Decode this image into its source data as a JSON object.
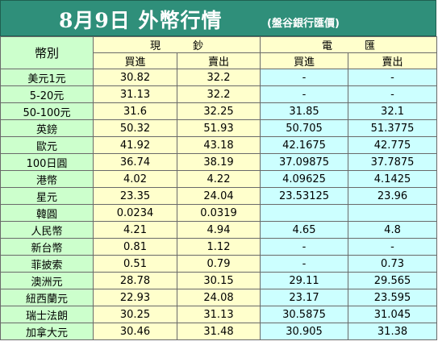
{
  "title": "8月9日 外幣行情",
  "subtitle": "(盤谷銀行匯價)",
  "header": {
    "currency_col": "幣別",
    "group_cash": "現鈔",
    "group_wire": "電匯",
    "buy": "買進",
    "sell": "賣出"
  },
  "rows": [
    {
      "name": "美元1元",
      "cash_buy": "30.82",
      "cash_sell": "32.2",
      "wire_buy": "-",
      "wire_sell": "-"
    },
    {
      "name": "5-20元",
      "cash_buy": "31.13",
      "cash_sell": "32.2",
      "wire_buy": "-",
      "wire_sell": "-"
    },
    {
      "name": "50-100元",
      "cash_buy": "31.6",
      "cash_sell": "32.25",
      "wire_buy": "31.85",
      "wire_sell": "32.1"
    },
    {
      "name": "英鎊",
      "cash_buy": "50.32",
      "cash_sell": "51.93",
      "wire_buy": "50.705",
      "wire_sell": "51.3775"
    },
    {
      "name": "歐元",
      "cash_buy": "41.92",
      "cash_sell": "43.18",
      "wire_buy": "42.1675",
      "wire_sell": "42.775"
    },
    {
      "name": "100日圓",
      "cash_buy": "36.74",
      "cash_sell": "38.19",
      "wire_buy": "37.09875",
      "wire_sell": "37.7875"
    },
    {
      "name": "港幣",
      "cash_buy": "4.02",
      "cash_sell": "4.22",
      "wire_buy": "4.09625",
      "wire_sell": "4.1425"
    },
    {
      "name": "星元",
      "cash_buy": "23.35",
      "cash_sell": "24.04",
      "wire_buy": "23.53125",
      "wire_sell": "23.96"
    },
    {
      "name": "韓圓",
      "cash_buy": "0.0234",
      "cash_sell": "0.0319",
      "wire_buy": "",
      "wire_sell": ""
    },
    {
      "name": "人民幣",
      "cash_buy": "4.21",
      "cash_sell": "4.94",
      "wire_buy": "4.65",
      "wire_sell": "4.8"
    },
    {
      "name": "新台幣",
      "cash_buy": "0.81",
      "cash_sell": "1.12",
      "wire_buy": "-",
      "wire_sell": "-"
    },
    {
      "name": "菲披索",
      "cash_buy": "0.51",
      "cash_sell": "0.79",
      "wire_buy": "-",
      "wire_sell": "0.73"
    },
    {
      "name": "澳洲元",
      "cash_buy": "28.78",
      "cash_sell": "30.15",
      "wire_buy": "29.11",
      "wire_sell": "29.565"
    },
    {
      "name": "紐西蘭元",
      "cash_buy": "22.93",
      "cash_sell": "24.08",
      "wire_buy": "23.17",
      "wire_sell": "23.595"
    },
    {
      "name": "瑞士法朗",
      "cash_buy": "30.25",
      "cash_sell": "31.13",
      "wire_buy": "30.5875",
      "wire_sell": "31.045"
    },
    {
      "name": "加拿大元",
      "cash_buy": "30.46",
      "cash_sell": "31.48",
      "wire_buy": "30.905",
      "wire_sell": "31.38"
    }
  ],
  "colors": {
    "header_bg": "#2f8f7a",
    "name_bg": "#ccffcc",
    "cash_bg": "#ffffcc",
    "wire_bg": "#ccffff"
  }
}
